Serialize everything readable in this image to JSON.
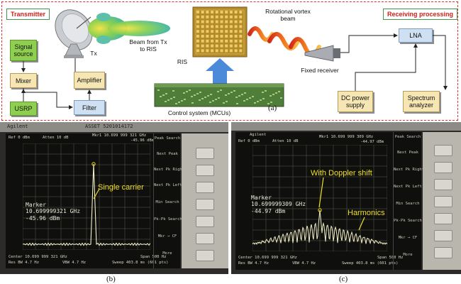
{
  "panel_a": {
    "transmitter_tag": "Transmitter",
    "receiving_tag": "Receiving processing",
    "signal_source": "Signal source",
    "mixer": "Mixer",
    "usrp": "USRP",
    "amplifier": "Amplifier",
    "filter": "Filter",
    "tx": "Tx",
    "beam_label": "Beam from Tx to RIS",
    "ris": "RIS",
    "control_system": "Control system (MCUs)",
    "vortex_beam": "Rotational vortex beam",
    "fixed_receiver": "Fixed receiver",
    "lna": "LNA",
    "dc_power": "DC power supply",
    "spectrum_analyzer": "Spectrum analyzer",
    "caption": "(a)"
  },
  "panel_b": {
    "brand": "Agilent",
    "asset": "ASSET 5201014172",
    "marker_title": "Marker",
    "marker_freq": "10.699999321 GHz",
    "marker_level": "-45.96 dBm",
    "callout": "Single carrier",
    "mkr_readout": "Mkr1 10.699 999 321 GHz",
    "mkr_level": "-45.96 dBm",
    "ref": "Ref 0 dBm",
    "atten": "Atten 10 dB",
    "center": "Center 10.699 999 321 GHz",
    "span": "Span 500 Hz",
    "res_bw": "Res BW 4.7 Hz",
    "vbw": "VBW 4.7 Hz",
    "sweep": "Sweep 403.8 ms (601 pts)",
    "softkeys": [
      "Peak Search",
      "Next Peak",
      "Next Pk Right",
      "Next Pk Left",
      "Min Search",
      "Pk-Pk Search",
      "Mkr → CF",
      "More"
    ],
    "caption": "(b)"
  },
  "panel_c": {
    "brand": "Agilent",
    "marker_title": "Marker",
    "marker_freq": "10.699999309 GHz",
    "marker_level": "-44.97 dBm",
    "callout_doppler": "With Doppler shift",
    "callout_harmonics": "Harmonics",
    "mkr_readout": "Mkr1 10.699 999 309 GHz",
    "mkr_level": "-44.97 dBm",
    "ref": "Ref 0 dBm",
    "atten": "Atten 10 dB",
    "center": "Center 10.699 999 321 GHz",
    "span": "Span 500 Hz",
    "res_bw": "Res BW 4.7 Hz",
    "vbw": "VBW 4.7 Hz",
    "sweep": "Sweep 403.8 ms (601 pts)",
    "softkeys": [
      "Peak Search",
      "Next Peak",
      "Next Pk Right",
      "Next Pk Left",
      "Min Search",
      "Pk-Pk Search",
      "Mkr → CF",
      "More"
    ],
    "caption": "(c)"
  },
  "colors": {
    "dashed_border": "#e0342f",
    "tag_text": "#d2201c",
    "trace": "#f2f0c8",
    "callout": "#f0e020",
    "arrow_blue": "#4a8ad8"
  }
}
